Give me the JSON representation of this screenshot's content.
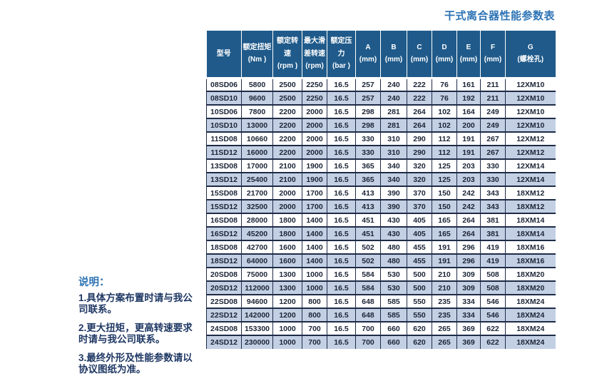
{
  "page": {
    "title": "干式离合器性能参数表"
  },
  "notes": {
    "heading": "说明：",
    "items": [
      "1.具体方案布置时请与我公司联系。",
      "2.更大扭矩，更高转速要求时请与我公司联系。",
      "3.最终外形及性能参数请以协议图纸为准。"
    ]
  },
  "table": {
    "columns": [
      {
        "label": "型号",
        "unit": ""
      },
      {
        "label": "额定扭矩",
        "unit": "(Nm )"
      },
      {
        "label": "额定转速",
        "unit": "(rpm )"
      },
      {
        "label": "最大滑差转速",
        "unit": "(rpm)"
      },
      {
        "label": "额定压力",
        "unit": "(bar )"
      },
      {
        "label": "A",
        "unit": "(mm)"
      },
      {
        "label": "B",
        "unit": "(mm)"
      },
      {
        "label": "C",
        "unit": "(mm)"
      },
      {
        "label": "D",
        "unit": "(mm)"
      },
      {
        "label": "E",
        "unit": "(mm)"
      },
      {
        "label": "F",
        "unit": "(mm)"
      },
      {
        "label": "G",
        "unit": "(螺栓孔)"
      }
    ],
    "rows": [
      [
        "08SD06",
        "5800",
        "2500",
        "2250",
        "16.5",
        "257",
        "240",
        "222",
        "76",
        "161",
        "211",
        "12XM10"
      ],
      [
        "08SD10",
        "9600",
        "2500",
        "2250",
        "16.5",
        "257",
        "240",
        "222",
        "76",
        "192",
        "211",
        "12XM10"
      ],
      [
        "10SD06",
        "7800",
        "2200",
        "2000",
        "16.5",
        "298",
        "281",
        "264",
        "102",
        "164",
        "249",
        "12XM10"
      ],
      [
        "10SD10",
        "13000",
        "2200",
        "2000",
        "16.5",
        "298",
        "281",
        "264",
        "102",
        "200",
        "249",
        "12XM10"
      ],
      [
        "11SD08",
        "10660",
        "2200",
        "2000",
        "16.5",
        "330",
        "310",
        "290",
        "112",
        "191",
        "267",
        "12XM12"
      ],
      [
        "11SD12",
        "16000",
        "2200",
        "2000",
        "16.5",
        "330",
        "310",
        "290",
        "112",
        "191",
        "267",
        "12XM12"
      ],
      [
        "13SD08",
        "17000",
        "2100",
        "1900",
        "16.5",
        "365",
        "340",
        "320",
        "125",
        "203",
        "330",
        "12XM14"
      ],
      [
        "13SD12",
        "25400",
        "2100",
        "1900",
        "16.5",
        "365",
        "340",
        "320",
        "125",
        "203",
        "330",
        "12XM14"
      ],
      [
        "15SD08",
        "21700",
        "2000",
        "1700",
        "16.5",
        "413",
        "390",
        "370",
        "150",
        "242",
        "343",
        "18XM12"
      ],
      [
        "15SD12",
        "32500",
        "2000",
        "1700",
        "16.5",
        "413",
        "390",
        "370",
        "150",
        "242",
        "343",
        "18XM12"
      ],
      [
        "16SD08",
        "28000",
        "1800",
        "1400",
        "16.5",
        "451",
        "430",
        "405",
        "165",
        "264",
        "381",
        "18XM14"
      ],
      [
        "16SD12",
        "45200",
        "1800",
        "1400",
        "16.5",
        "451",
        "430",
        "405",
        "165",
        "264",
        "381",
        "18XM14"
      ],
      [
        "18SD08",
        "42700",
        "1600",
        "1400",
        "16.5",
        "502",
        "480",
        "455",
        "191",
        "296",
        "419",
        "18XM16"
      ],
      [
        "18SD12",
        "64000",
        "1600",
        "1400",
        "16.5",
        "502",
        "480",
        "455",
        "191",
        "296",
        "419",
        "18XM16"
      ],
      [
        "20SD08",
        "75000",
        "1300",
        "1000",
        "16.5",
        "584",
        "530",
        "500",
        "210",
        "309",
        "508",
        "18XM20"
      ],
      [
        "20SD12",
        "112000",
        "1300",
        "1000",
        "16.5",
        "584",
        "530",
        "500",
        "210",
        "309",
        "508",
        "18XM20"
      ],
      [
        "22SD08",
        "94600",
        "1200",
        "800",
        "16.5",
        "648",
        "585",
        "550",
        "235",
        "334",
        "546",
        "18XM24"
      ],
      [
        "22SD12",
        "142000",
        "1200",
        "800",
        "16.5",
        "648",
        "585",
        "550",
        "235",
        "334",
        "546",
        "18XM24"
      ],
      [
        "24SD08",
        "153300",
        "1000",
        "700",
        "16.5",
        "700",
        "660",
        "620",
        "265",
        "369",
        "622",
        "18XM24"
      ],
      [
        "24SD12",
        "230000",
        "1000",
        "700",
        "16.5",
        "700",
        "660",
        "620",
        "265",
        "369",
        "622",
        "18XM24"
      ]
    ]
  },
  "colors": {
    "header_bg": "#1F5A8A",
    "row_alt_bg": "#C3D0E4",
    "border": "#1E2B47",
    "title_text": "#2E74B5",
    "note_text": "#1F3864",
    "cell_text": "#1B2436"
  }
}
